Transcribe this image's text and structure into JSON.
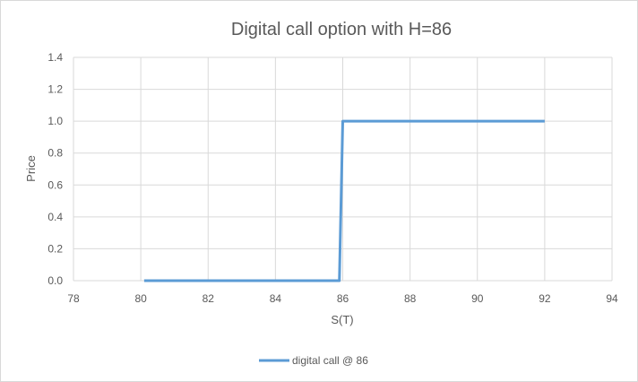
{
  "chart_data": {
    "type": "line",
    "title": "Digital call option with H=86",
    "xlabel": "S(T)",
    "ylabel": "Price",
    "xlim": [
      78,
      94
    ],
    "ylim": [
      0,
      1.4
    ],
    "xticks": [
      "78",
      "80",
      "82",
      "84",
      "86",
      "88",
      "90",
      "92",
      "94"
    ],
    "yticks": [
      "0.0",
      "0.2",
      "0.4",
      "0.6",
      "0.8",
      "1.0",
      "1.2",
      "1.4"
    ],
    "grid": true,
    "legend_position": "bottom",
    "series": [
      {
        "name": "digital call @ 86",
        "color": "#5b9bd5",
        "x": [
          80.1,
          85.9,
          86.0,
          92.0
        ],
        "y": [
          0.0,
          0.0,
          1.0,
          1.0
        ]
      }
    ]
  }
}
